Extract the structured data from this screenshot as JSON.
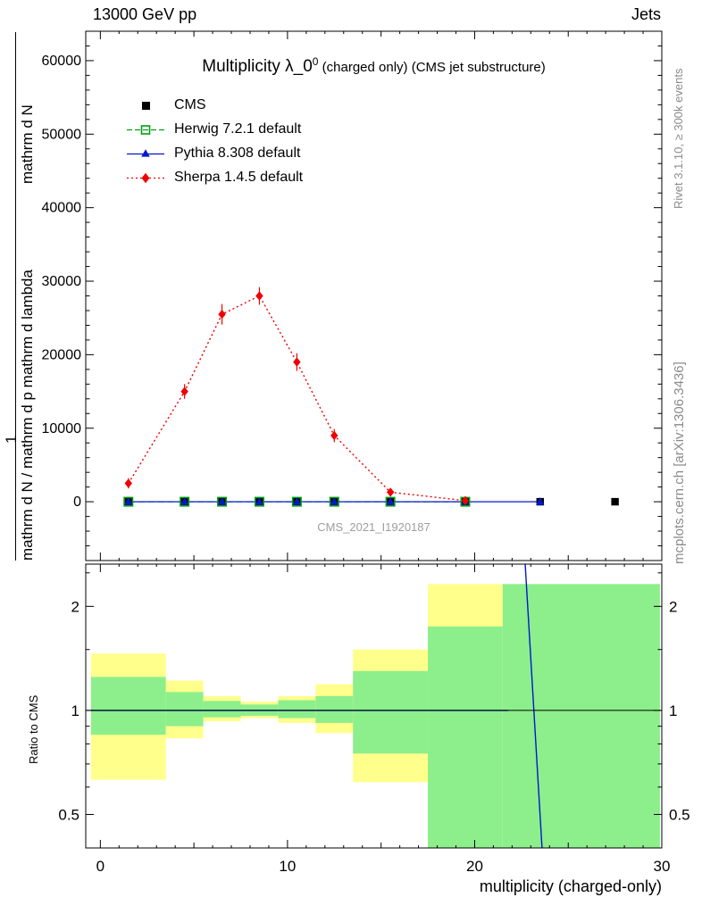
{
  "header": {
    "left": "13000 GeV pp",
    "right": "Jets"
  },
  "plot_title": {
    "main": "Multiplicity λ_0",
    "sup": "0",
    "suffix": " (charged only) (CMS jet substructure)"
  },
  "watermark": "CMS_2021_I1920187",
  "side_notes": {
    "rivet": "Rivet 3.1.10, ≥ 300k events",
    "mcplots": "mcplots.cern.ch [arXiv:1306.3436]"
  },
  "y_axis_title": {
    "prefix": "1",
    "numerator": "mathrm d N",
    "denominator": "mathrm d N / mathrm d p mathrm d lambda"
  },
  "x_axis_label": "multiplicity (charged-only)",
  "ratio_label": "Ratio to CMS",
  "chart_data": {
    "type": "line",
    "title": "Multiplicity λ_0^0 (charged only) (CMS jet substructure)",
    "xlabel": "multiplicity (charged-only)",
    "ylabel": "1/N dN/dλ",
    "main": {
      "xlim": [
        -0.78,
        30
      ],
      "ylim": [
        -8000,
        64000
      ],
      "x_ticks": [
        0,
        10,
        20,
        30
      ],
      "y_ticks": [
        0,
        10000,
        20000,
        30000,
        40000,
        50000,
        60000
      ]
    },
    "series": {
      "cms": {
        "label": "CMS",
        "color": "#000000",
        "marker": "filled-square",
        "x": [
          1.5,
          4.5,
          6.5,
          8.5,
          10.5,
          12.5,
          15.5,
          19.5,
          23.5,
          27.5
        ],
        "y": [
          0,
          0,
          0,
          0,
          0,
          0,
          0,
          0,
          0,
          0
        ]
      },
      "herwig": {
        "label": "Herwig 7.2.1 default",
        "color": "#00a010",
        "marker": "open-square",
        "line": "dashed",
        "x": [
          1.5,
          4.5,
          6.5,
          8.5,
          10.5,
          12.5,
          15.5,
          19.5
        ],
        "y": [
          0,
          0,
          0,
          0,
          0,
          0,
          0,
          0
        ]
      },
      "pythia": {
        "label": "Pythia 8.308 default",
        "color": "#0018cc",
        "marker": "filled-triangle",
        "line": "solid",
        "x": [
          1.5,
          4.5,
          6.5,
          8.5,
          10.5,
          12.5,
          15.5,
          19.5,
          23.5
        ],
        "y": [
          0,
          0,
          0,
          0,
          0,
          0,
          0,
          0,
          0
        ]
      },
      "sherpa": {
        "label": "Sherpa 1.4.5 default",
        "color": "#f00000",
        "marker": "filled-diamond",
        "line": "dotted",
        "x": [
          1.5,
          4.5,
          6.5,
          8.5,
          10.5,
          12.5,
          15.5,
          19.5
        ],
        "y": [
          2500,
          15000,
          25500,
          28000,
          19000,
          9000,
          1300,
          150
        ],
        "yerr": [
          700,
          1000,
          1400,
          1200,
          1200,
          900,
          500,
          200
        ]
      }
    },
    "ratio": {
      "ylim": [
        0.4,
        2.65
      ],
      "y_ticks": [
        0.5,
        1,
        2
      ],
      "minor_ticks": [
        0.6,
        0.7,
        0.8,
        0.9,
        1.5,
        2.5
      ],
      "band_colors": {
        "yellow": "#ffff8c",
        "green": "#8cef8c"
      },
      "bands": [
        {
          "x0": -0.5,
          "x1": 3.5,
          "yellow": [
            0.63,
            1.46
          ],
          "green": [
            0.85,
            1.25
          ]
        },
        {
          "x0": 3.5,
          "x1": 5.5,
          "yellow": [
            0.83,
            1.22
          ],
          "green": [
            0.9,
            1.13
          ]
        },
        {
          "x0": 5.5,
          "x1": 7.5,
          "yellow": [
            0.93,
            1.1
          ],
          "green": [
            0.955,
            1.065
          ]
        },
        {
          "x0": 7.5,
          "x1": 9.5,
          "yellow": [
            0.95,
            1.06
          ],
          "green": [
            0.965,
            1.04
          ]
        },
        {
          "x0": 9.5,
          "x1": 11.5,
          "yellow": [
            0.92,
            1.1
          ],
          "green": [
            0.95,
            1.07
          ]
        },
        {
          "x0": 11.5,
          "x1": 13.5,
          "yellow": [
            0.86,
            1.19
          ],
          "green": [
            0.92,
            1.1
          ]
        },
        {
          "x0": 13.5,
          "x1": 17.5,
          "yellow": [
            0.62,
            1.5
          ],
          "green": [
            0.75,
            1.3
          ]
        },
        {
          "x0": 17.5,
          "x1": 21.5,
          "yellow": [
            0.4,
            2.32
          ],
          "green": [
            0.4,
            1.75
          ]
        },
        {
          "x0": 21.5,
          "x1": 29.9,
          "yellow": [
            0.4,
            2.32
          ],
          "green": [
            0.4,
            2.32
          ]
        }
      ],
      "pythia_segments": [
        [
          [
            -0.5,
            1.0
          ],
          [
            21.8,
            1.0
          ]
        ],
        [
          [
            22.7,
            2.65
          ],
          [
            23.6,
            0.4
          ]
        ]
      ]
    }
  }
}
